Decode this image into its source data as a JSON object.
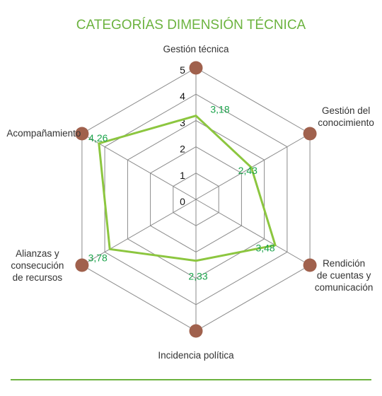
{
  "chart_data": {
    "type": "radar",
    "title": "CATEGORÍAS DIMENSIÓN TÉCNICA",
    "categories": [
      [
        "Gestión técnica"
      ],
      [
        "Gestión del",
        "conocimiento"
      ],
      [
        "Rendición",
        "de cuentas y",
        "comunicación"
      ],
      [
        "Incidencia política"
      ],
      [
        "Alianzas y",
        "consecución",
        "de recursos"
      ],
      [
        "Acompañamiento"
      ]
    ],
    "value_labels": [
      "3,18",
      "2,43",
      "3,48",
      "2,33",
      "3,78",
      "4,26"
    ],
    "series": [
      {
        "values": [
          3.18,
          2.43,
          3.48,
          2.33,
          3.78,
          4.26
        ],
        "color": "#8cc63f"
      }
    ],
    "rlim": [
      0,
      5
    ],
    "ticks": [
      0,
      1,
      2,
      3,
      4,
      5
    ],
    "grid": true,
    "colors": {
      "title": "#6cb33f",
      "grid": "#8a8a8a",
      "marker": "#a0614d",
      "value_text": "#1aa34a",
      "line": "#8cc63f",
      "rule": "#6cb33f"
    }
  }
}
